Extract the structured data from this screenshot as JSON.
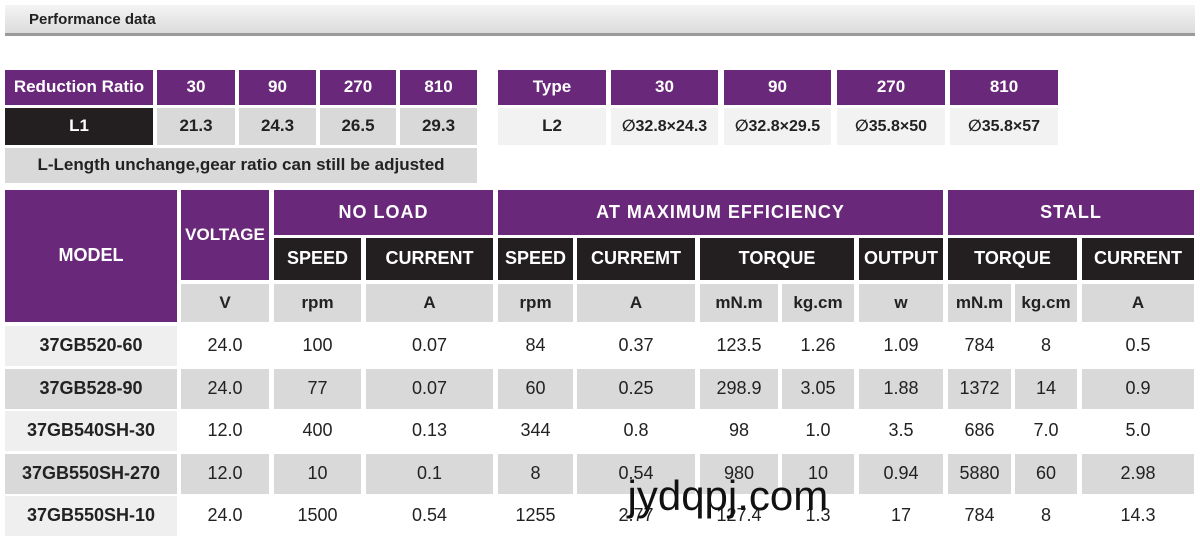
{
  "header": {
    "title": "Performance data"
  },
  "ratio_table": {
    "ratio_row": {
      "label": "Reduction Ratio",
      "values": [
        "30",
        "90",
        "270",
        "810"
      ]
    },
    "l1_row": {
      "label": "L1",
      "values": [
        "21.3",
        "24.3",
        "26.5",
        "29.3"
      ]
    },
    "note": "L-Length unchange,gear ratio can still be adjusted"
  },
  "type_table": {
    "type_row": {
      "label": "Type",
      "values": [
        "30",
        "90",
        "270",
        "810"
      ]
    },
    "l2_row": {
      "label": "L2",
      "values": [
        "∅32.8×24.3",
        "∅32.8×29.5",
        "∅35.8×50",
        "∅35.8×57"
      ]
    }
  },
  "main_table": {
    "model_header": "MODEL",
    "voltage_header": "VOLTAGE",
    "groups": [
      "NO LOAD",
      "AT MAXIMUM EFFICIENCY",
      "STALL"
    ],
    "subheaders": [
      "SPEED",
      "CURRENT",
      "SPEED",
      "CURREMT",
      "TORQUE",
      "OUTPUT",
      "TORQUE",
      "CURRENT"
    ],
    "units": [
      "V",
      "rpm",
      "A",
      "rpm",
      "A",
      "mN.m",
      "kg.cm",
      "w",
      "mN.m",
      "kg.cm",
      "A"
    ],
    "rows": [
      [
        "37GB520-60",
        "24.0",
        "100",
        "0.07",
        "84",
        "0.37",
        "123.5",
        "1.26",
        "1.09",
        "784",
        "8",
        "0.5"
      ],
      [
        "37GB528-90",
        "24.0",
        "77",
        "0.07",
        "60",
        "0.25",
        "298.9",
        "3.05",
        "1.88",
        "1372",
        "14",
        "0.9"
      ],
      [
        "37GB540SH-30",
        "12.0",
        "400",
        "0.13",
        "344",
        "0.8",
        "98",
        "1.0",
        "3.5",
        "686",
        "7.0",
        "5.0"
      ],
      [
        "37GB550SH-270",
        "12.0",
        "10",
        "0.1",
        "8",
        "0.54",
        "980",
        "10",
        "0.94",
        "5880",
        "60",
        "2.98"
      ],
      [
        "37GB550SH-10",
        "24.0",
        "1500",
        "0.54",
        "1255",
        "2.77",
        "127.4",
        "1.3",
        "17",
        "784",
        "8",
        "14.3"
      ]
    ]
  },
  "watermark": "jydqpj.com"
}
